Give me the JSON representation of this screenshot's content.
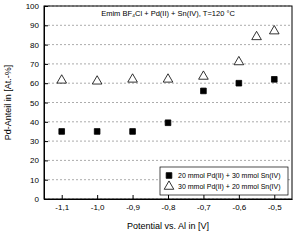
{
  "chart_data": {
    "type": "scatter",
    "title": "Emim BF₄Cl + Pd(II) + Sn(IV), T=120 °C",
    "x_label": "Potential vs. Al in [V]",
    "y_label": "Pd-Anteil in [At.-%]",
    "xlim": [
      -1.15,
      -0.45
    ],
    "xticks": [
      {
        "value": -1.1,
        "label": "-1,1"
      },
      {
        "value": -1.0,
        "label": "-1,0"
      },
      {
        "value": -0.9,
        "label": "-0,9"
      },
      {
        "value": -0.8,
        "label": "-0,8"
      },
      {
        "value": -0.7,
        "label": "-0,7"
      },
      {
        "value": -0.6,
        "label": "-0,6"
      },
      {
        "value": -0.5,
        "label": "-0,5"
      }
    ],
    "ylim": [
      0,
      100
    ],
    "yticks": [
      0,
      10,
      20,
      30,
      40,
      50,
      60,
      70,
      80,
      90,
      100
    ],
    "grid": true,
    "legend": "lower right",
    "series": [
      {
        "name": "20 mmol Pd(II) + 30 mmol Sn(IV)",
        "color": "#000000",
        "marker": "square",
        "x": [
          -1.1,
          -1.0,
          -0.9,
          -0.8,
          -0.7,
          -0.6,
          -0.5
        ],
        "values": [
          35,
          35,
          35,
          39.5,
          56,
          60,
          62
        ]
      },
      {
        "name": "30 mmol Pd(II) + 20 mmol Sn(IV)",
        "color": "#000000",
        "marker": "triangle-open",
        "x": [
          -1.1,
          -1.0,
          -0.9,
          -0.8,
          -0.7,
          -0.6,
          -0.55,
          -0.5
        ],
        "values": [
          61.5,
          61,
          62,
          62,
          63.5,
          71,
          84,
          87
        ]
      }
    ]
  }
}
